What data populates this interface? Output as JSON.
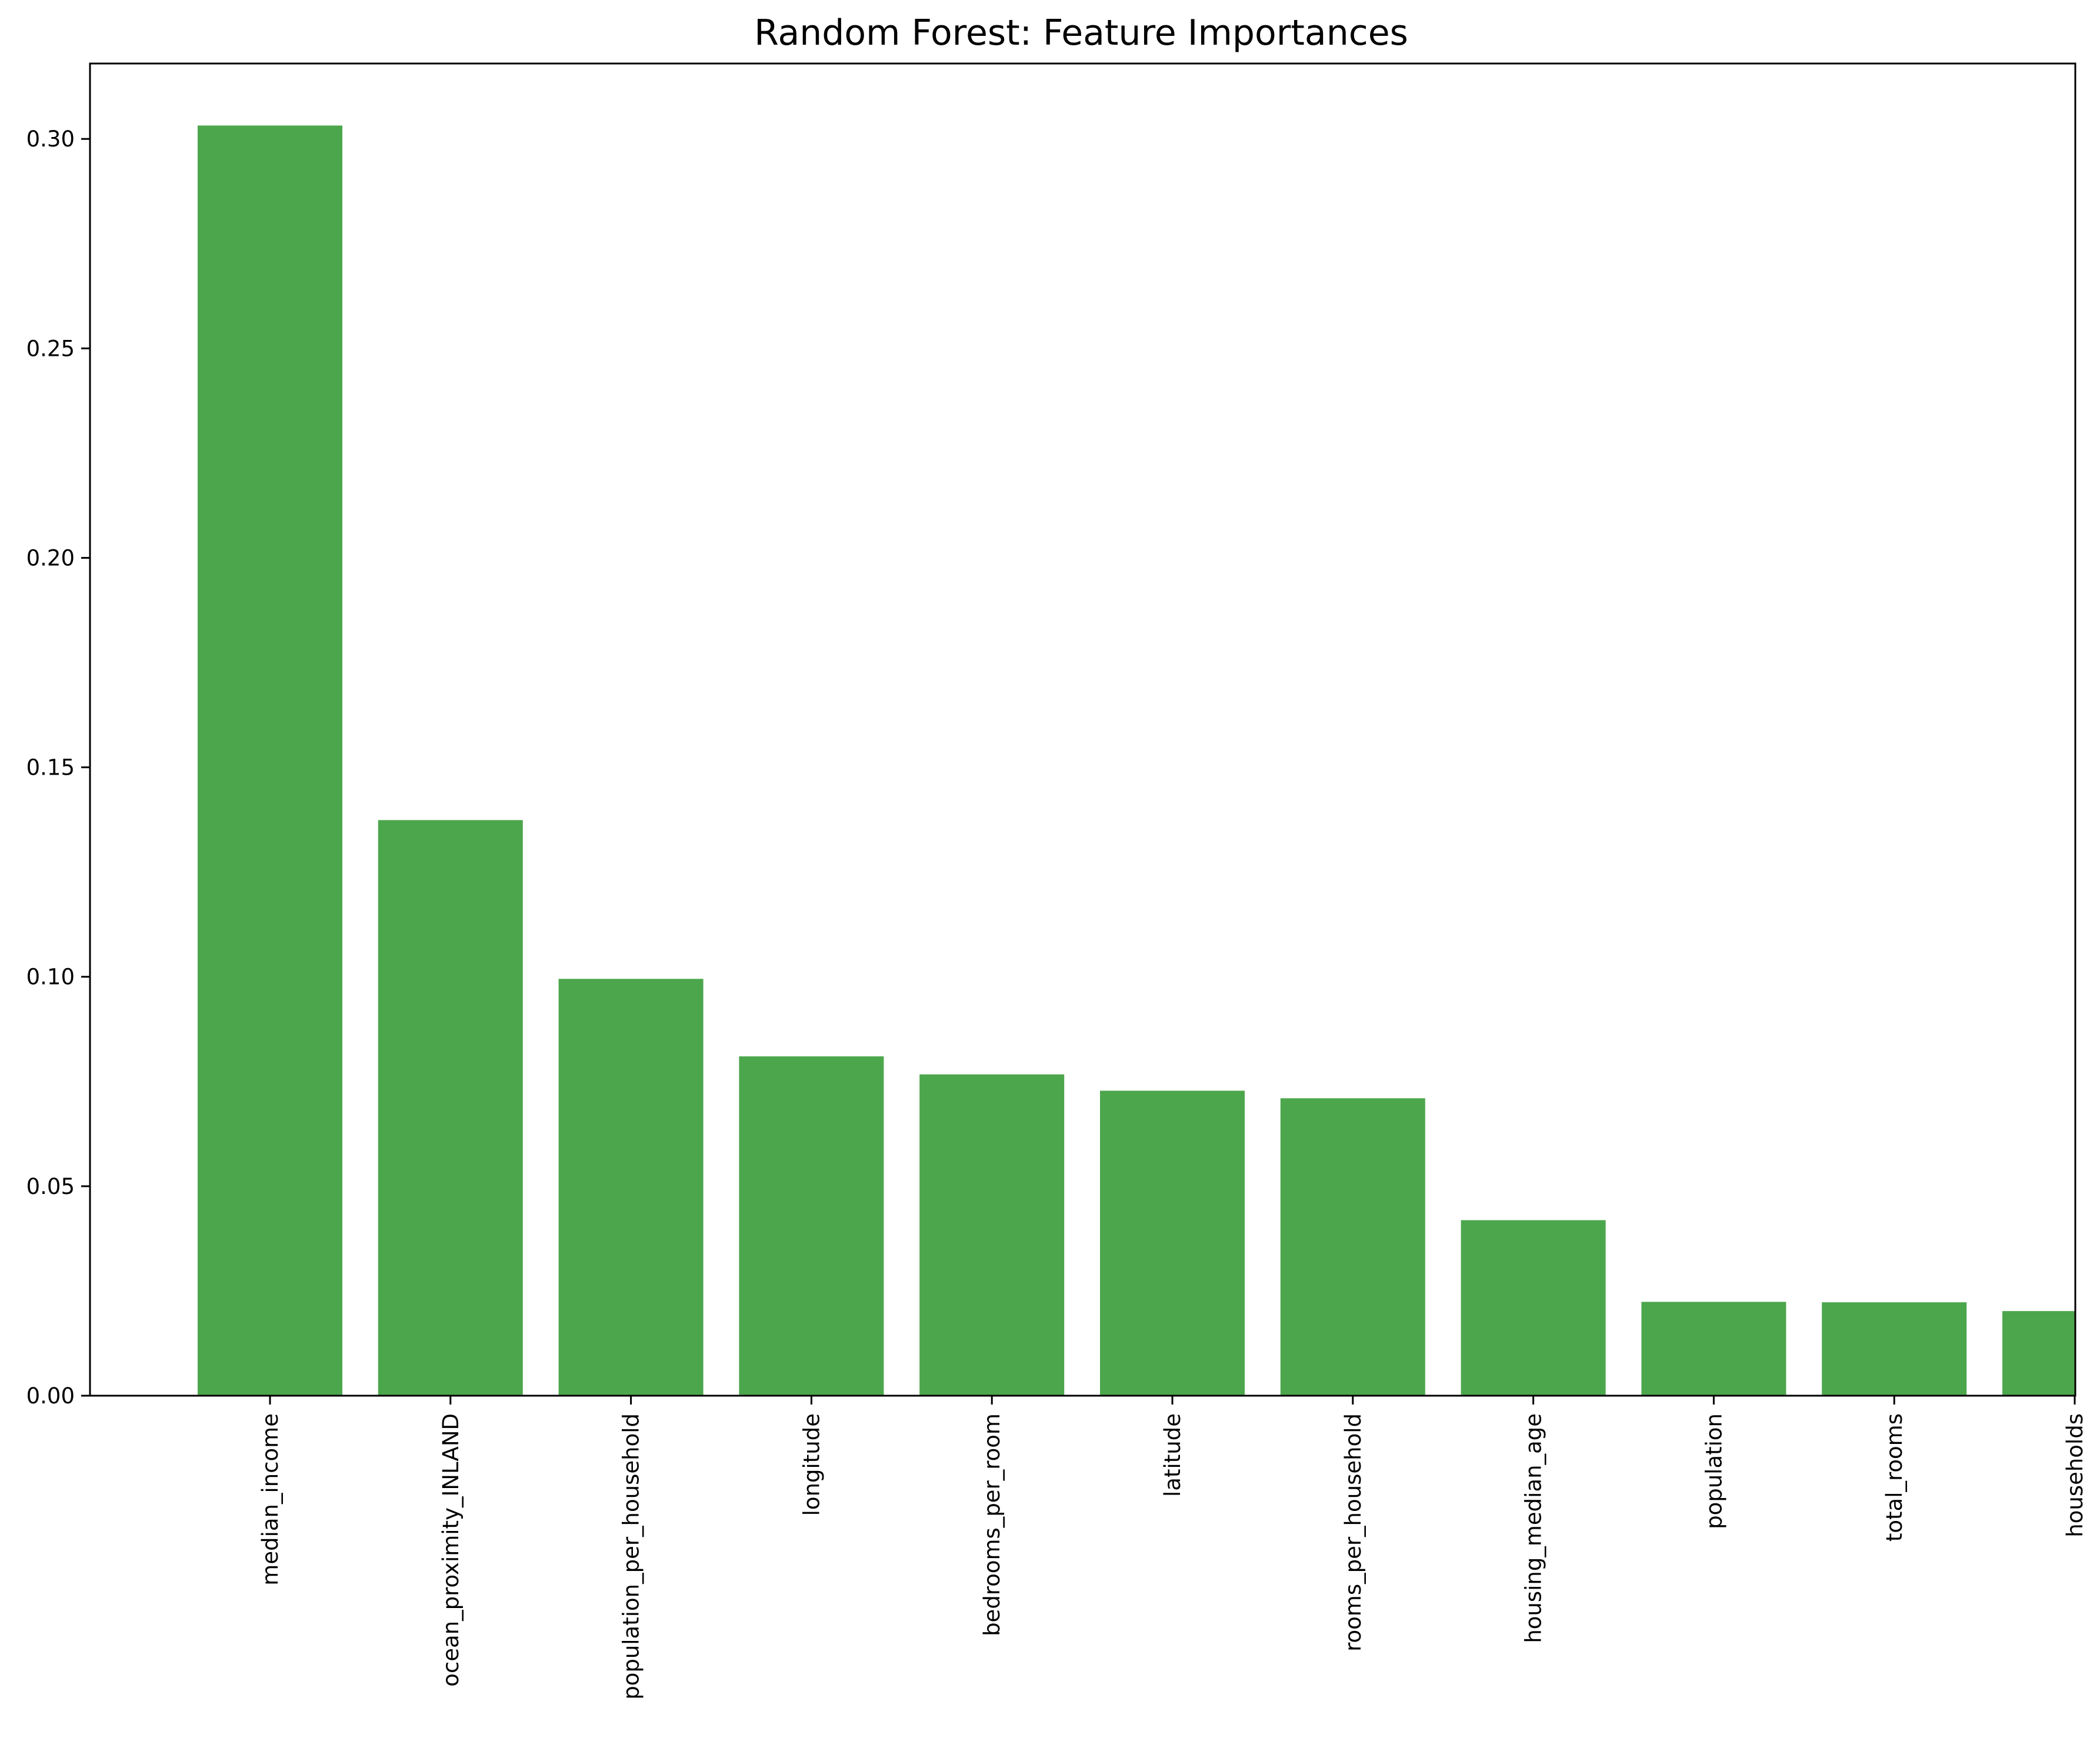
{
  "chart_data": {
    "type": "bar",
    "title": "Random Forest: Feature Importances",
    "xlabel": "",
    "ylabel": "",
    "categories": [
      "median_income",
      "ocean_proximity_INLAND",
      "population_per_household",
      "longitude",
      "bedrooms_per_room",
      "latitude",
      "rooms_per_household",
      "housing_median_age",
      "population",
      "total_rooms",
      "households"
    ],
    "values": [
      0.3032,
      0.1374,
      0.0995,
      0.081,
      0.0767,
      0.0728,
      0.071,
      0.0419,
      0.0224,
      0.0223,
      0.0202
    ],
    "yticks": [
      "0.00",
      "0.05",
      "0.10",
      "0.15",
      "0.20",
      "0.25",
      "0.30"
    ],
    "ylim": [
      0,
      0.318
    ],
    "bar_color": "#4ca64c",
    "grid": false,
    "legend": "none"
  }
}
